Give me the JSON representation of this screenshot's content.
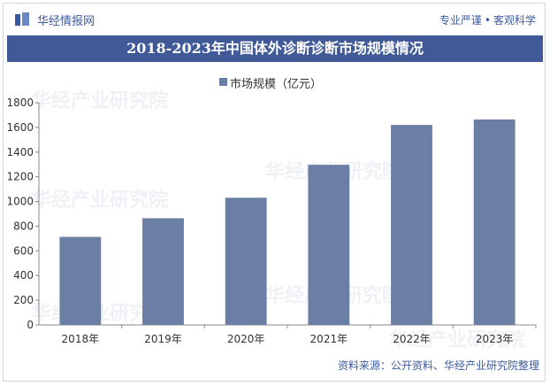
{
  "header": {
    "logo_text": "华经情报网",
    "slogan_left": "专业严谨",
    "slogan_sep": "•",
    "slogan_right": "客观科学"
  },
  "title": "2018-2023年中国体外诊断诊断市场规模情况",
  "source": "资料来源：公开资料、华经产业研究院整理",
  "watermark": "华经产业研究院",
  "colors": {
    "bar": "#6b7ea3",
    "title_bg": "#3f5a96",
    "brand": "#3a5aa0"
  },
  "chart_data": {
    "type": "bar",
    "categories": [
      "2018年",
      "2019年",
      "2020年",
      "2021年",
      "2022年",
      "2023年"
    ],
    "series": [
      {
        "name": "市场规模（亿元）",
        "values": [
          713,
          864,
          1030,
          1297,
          1620,
          1664
        ]
      }
    ],
    "ylim": [
      0,
      1800
    ],
    "yticks": [
      0,
      200,
      400,
      600,
      800,
      1000,
      1200,
      1400,
      1600,
      1800
    ],
    "grid": false,
    "legend_position": "top-center"
  }
}
